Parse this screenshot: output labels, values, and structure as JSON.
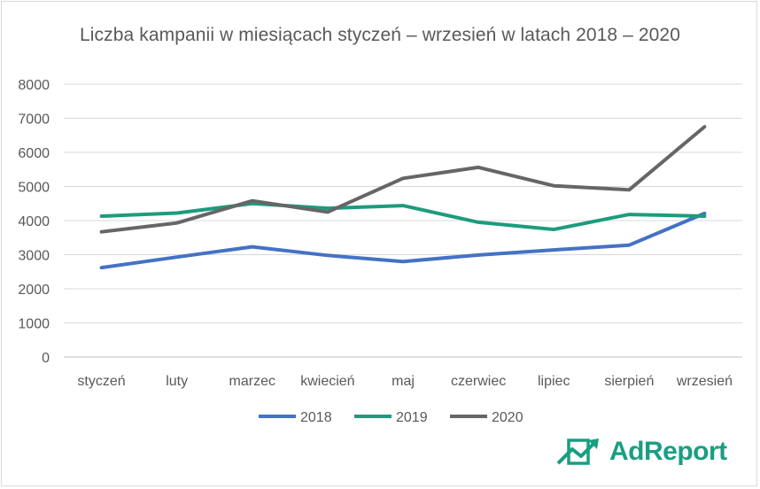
{
  "chart_data": {
    "type": "line",
    "title": "Liczba kampanii w miesiącach styczeń – wrzesień w latach 2018 – 2020",
    "categories": [
      "styczeń",
      "luty",
      "marzec",
      "kwiecień",
      "maj",
      "czerwiec",
      "lipiec",
      "sierpień",
      "wrzesień"
    ],
    "ylim": [
      0,
      8000
    ],
    "yticks": [
      0,
      1000,
      2000,
      3000,
      4000,
      5000,
      6000,
      7000,
      8000
    ],
    "grid": true,
    "legend_position": "bottom",
    "series": [
      {
        "name": "2018",
        "color": "#4472c4",
        "values": [
          2620,
          2930,
          3230,
          2980,
          2800,
          2990,
          3140,
          3280,
          4210
        ]
      },
      {
        "name": "2019",
        "color": "#1e9b7d",
        "values": [
          4130,
          4220,
          4500,
          4360,
          4440,
          3950,
          3740,
          4180,
          4130
        ]
      },
      {
        "name": "2020",
        "color": "#666666",
        "values": [
          3670,
          3930,
          4580,
          4250,
          5240,
          5560,
          5020,
          4900,
          6750
        ]
      }
    ]
  },
  "brand": {
    "name": "AdReport",
    "color": "#1a9e82"
  }
}
